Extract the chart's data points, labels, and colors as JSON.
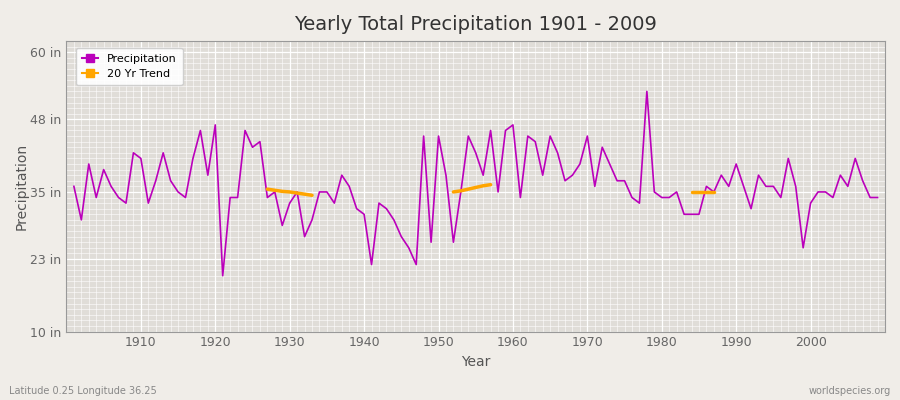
{
  "title": "Yearly Total Precipitation 1901 - 2009",
  "xlabel": "Year",
  "ylabel": "Precipitation",
  "footer_left": "Latitude 0.25 Longitude 36.25",
  "footer_right": "worldspecies.org",
  "bg_color": "#f0ede8",
  "plot_bg_color": "#e0ddd8",
  "grid_color": "#ffffff",
  "precip_color": "#bb00bb",
  "trend_color": "#ffa500",
  "ylim": [
    10,
    62
  ],
  "yticks": [
    10,
    23,
    35,
    48,
    60
  ],
  "ytick_labels": [
    "10 in",
    "23 in",
    "35 in",
    "48 in",
    "60 in"
  ],
  "xlim": [
    1900,
    2010
  ],
  "xticks": [
    1910,
    1920,
    1930,
    1940,
    1950,
    1960,
    1970,
    1980,
    1990,
    2000
  ],
  "years": [
    1901,
    1902,
    1903,
    1904,
    1905,
    1906,
    1907,
    1908,
    1909,
    1910,
    1911,
    1912,
    1913,
    1914,
    1915,
    1916,
    1917,
    1918,
    1919,
    1920,
    1921,
    1922,
    1923,
    1924,
    1925,
    1926,
    1927,
    1928,
    1929,
    1930,
    1931,
    1932,
    1933,
    1934,
    1935,
    1936,
    1937,
    1938,
    1939,
    1940,
    1941,
    1942,
    1943,
    1944,
    1945,
    1946,
    1947,
    1948,
    1949,
    1950,
    1951,
    1952,
    1953,
    1954,
    1955,
    1956,
    1957,
    1958,
    1959,
    1960,
    1961,
    1962,
    1963,
    1964,
    1965,
    1966,
    1967,
    1968,
    1969,
    1970,
    1971,
    1972,
    1973,
    1974,
    1975,
    1976,
    1977,
    1978,
    1979,
    1980,
    1981,
    1982,
    1983,
    1984,
    1985,
    1986,
    1987,
    1988,
    1989,
    1990,
    1991,
    1992,
    1993,
    1994,
    1995,
    1996,
    1997,
    1998,
    1999,
    2000,
    2001,
    2002,
    2003,
    2004,
    2005,
    2006,
    2007,
    2008,
    2009
  ],
  "precip": [
    36,
    30,
    40,
    34,
    39,
    36,
    34,
    33,
    42,
    41,
    33,
    37,
    42,
    37,
    35,
    34,
    41,
    46,
    38,
    47,
    20,
    34,
    34,
    46,
    43,
    44,
    34,
    35,
    29,
    33,
    35,
    27,
    30,
    35,
    35,
    33,
    38,
    36,
    32,
    31,
    22,
    33,
    32,
    30,
    27,
    25,
    22,
    45,
    26,
    45,
    38,
    26,
    35,
    45,
    42,
    38,
    46,
    35,
    46,
    47,
    34,
    45,
    44,
    38,
    45,
    42,
    37,
    38,
    40,
    45,
    36,
    43,
    40,
    37,
    37,
    34,
    33,
    53,
    35,
    34,
    34,
    35,
    31,
    31,
    31,
    36,
    35,
    38,
    36,
    40,
    36,
    32,
    38,
    36,
    36,
    34,
    41,
    36,
    25,
    33,
    35,
    35,
    34,
    38,
    36,
    41,
    37,
    34,
    34
  ],
  "trend_segments": [
    {
      "years": [
        1927,
        1928,
        1929,
        1930,
        1931,
        1932,
        1933
      ],
      "values": [
        35.5,
        35.3,
        35.1,
        35.0,
        34.8,
        34.6,
        34.4
      ]
    },
    {
      "years": [
        1952,
        1953,
        1954,
        1955,
        1956,
        1957
      ],
      "values": [
        35.0,
        35.2,
        35.5,
        35.8,
        36.1,
        36.3
      ]
    },
    {
      "years": [
        1984,
        1985,
        1986,
        1987
      ],
      "values": [
        35.0,
        35.0,
        35.0,
        35.0
      ]
    }
  ],
  "legend_labels": [
    "Precipitation",
    "20 Yr Trend"
  ]
}
